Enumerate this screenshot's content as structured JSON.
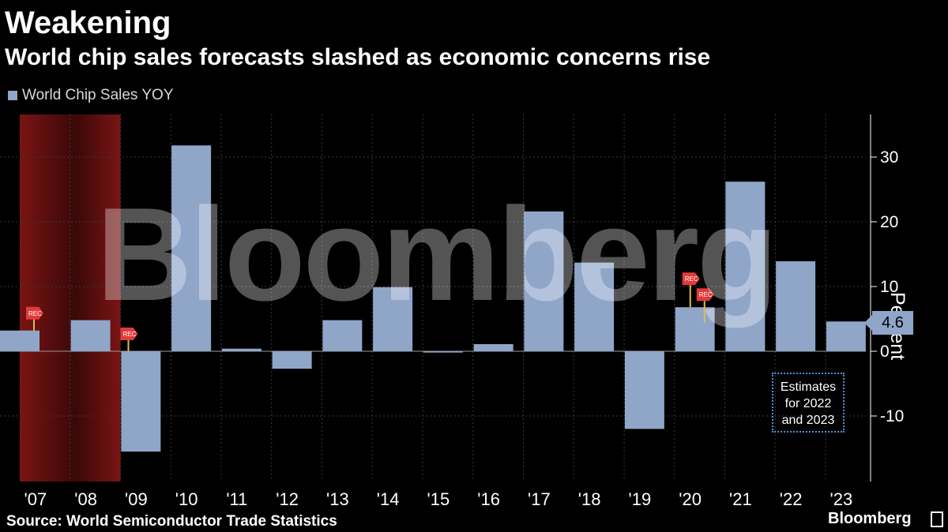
{
  "header": {
    "title": "Weakening",
    "subtitle": "World chip sales forecasts slashed as economic concerns rise"
  },
  "legend": {
    "label": "World Chip Sales YOY"
  },
  "watermark": "Bloomberg",
  "note": {
    "line1": "Estimates",
    "line2": "for 2022",
    "line3": "and 2023"
  },
  "last_value_tag": "4.6",
  "footer": {
    "source": "Source: World Semiconductor Trade Statistics",
    "brand": "Bloomberg"
  },
  "colors": {
    "bar": "#8fa6c9",
    "recession": "#7a1414",
    "grid": "#3a3a3a",
    "background": "#000000",
    "rec_flag": "#e23a3a"
  },
  "chart_data": {
    "type": "bar",
    "categories": [
      "'07",
      "'08",
      "'09",
      "'10",
      "'11",
      "'12",
      "'13",
      "'14",
      "'15",
      "'16",
      "'17",
      "'18",
      "'19",
      "'20",
      "'21",
      "'22",
      "'23"
    ],
    "values": [
      3.2,
      4.8,
      -15.5,
      31.8,
      0.4,
      -2.7,
      4.8,
      9.9,
      -0.2,
      1.1,
      21.6,
      13.7,
      -12.0,
      6.8,
      26.2,
      13.9,
      4.6
    ],
    "ylabel": "Percent",
    "ylim": [
      -20,
      36
    ],
    "yticks": [
      -10,
      0,
      10,
      20,
      30
    ],
    "ytick_labels": [
      "-10",
      "0",
      "10",
      "20",
      "30"
    ],
    "recession_shading": {
      "from": "'07",
      "to": "'09"
    },
    "rec_markers": [
      {
        "category": "'07",
        "value": 3.2
      },
      {
        "category": "'09",
        "value": 0
      },
      {
        "category": "'20",
        "value": 6.8
      }
    ],
    "rec_marker_label": "REC",
    "grid": true,
    "legend_position": "top-left"
  }
}
